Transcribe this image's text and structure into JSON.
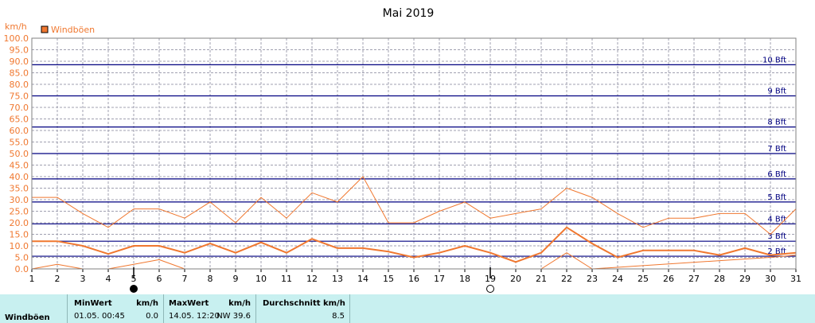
{
  "chart_data": {
    "type": "line",
    "title": "Mai 2019",
    "ylabel": "km/h",
    "ylim": [
      0,
      100
    ],
    "ytick_step": 5,
    "xlim": [
      1,
      31
    ],
    "x_ticks": [
      1,
      2,
      3,
      4,
      5,
      6,
      7,
      8,
      9,
      10,
      11,
      12,
      13,
      14,
      15,
      16,
      17,
      18,
      19,
      20,
      21,
      22,
      23,
      24,
      25,
      26,
      27,
      28,
      29,
      30,
      31
    ],
    "grid": true,
    "legend_position": "top-left",
    "legend": {
      "label": "Windböen",
      "color": "#f07830"
    },
    "series": [
      {
        "name": "Windböen",
        "x": [
          1,
          2,
          3,
          4,
          5,
          6,
          7,
          8,
          9,
          10,
          11,
          12,
          13,
          14,
          15,
          16,
          17,
          18,
          19,
          20,
          21,
          22,
          23,
          24,
          25,
          26,
          27,
          28,
          29,
          30,
          31
        ],
        "values": [
          12,
          12,
          10,
          6.5,
          10,
          10,
          7,
          11,
          7,
          11.5,
          7,
          13,
          9,
          9,
          7.5,
          5,
          7,
          10,
          7,
          3,
          7,
          18,
          11,
          5,
          8,
          8,
          8,
          6,
          9,
          6,
          7
        ]
      },
      {
        "name": "",
        "x": [
          1,
          2,
          3,
          4,
          5,
          6,
          7,
          8,
          9,
          10,
          11,
          12,
          13,
          14,
          15,
          16,
          17,
          18,
          19,
          20,
          21,
          22,
          23,
          24,
          25,
          26,
          27,
          28,
          29,
          30,
          31
        ],
        "values": [
          31,
          31,
          24,
          18,
          26,
          26,
          22,
          29,
          20,
          31,
          22,
          33,
          29,
          40,
          20,
          20,
          25,
          29,
          22,
          24,
          26,
          35,
          31,
          24,
          18,
          22,
          22,
          24,
          24,
          15,
          26
        ]
      },
      {
        "name": "",
        "x": [
          1,
          2,
          3,
          4,
          5,
          6,
          7,
          8,
          21,
          22,
          23,
          30,
          31
        ],
        "values": [
          0,
          2,
          0,
          0,
          2,
          4,
          0,
          null,
          0,
          7,
          0,
          5,
          6
        ]
      }
    ],
    "beaufort": [
      {
        "label": "2 Bft",
        "value": 5.5
      },
      {
        "label": "3 Bft",
        "value": 12
      },
      {
        "label": "4 Bft",
        "value": 19.5
      },
      {
        "label": "5 Bft",
        "value": 29
      },
      {
        "label": "6 Bft",
        "value": 39
      },
      {
        "label": "7 Bft",
        "value": 50
      },
      {
        "label": "8 Bft",
        "value": 61.5
      },
      {
        "label": "9 Bft",
        "value": 75
      },
      {
        "label": "10 Bft",
        "value": 88.5
      }
    ],
    "moon_phases": [
      {
        "day": 5,
        "phase": "new-moon"
      },
      {
        "day": 19,
        "phase": "full-moon"
      }
    ],
    "colors": {
      "series_main": "#f07830",
      "series_other": "#f07830",
      "beaufort": "#000080",
      "grid": "#a0a0b0",
      "axis": "#000000",
      "footer_bg": "#c8f0f0"
    }
  },
  "footer": {
    "row_label": "Windböen",
    "min_header": "MinWert",
    "min_unit": "km/h",
    "min_time": "01.05.  00:45",
    "min_value": "0.0",
    "max_header": "MaxWert",
    "max_unit": "km/h",
    "max_time": "14.05.  12:20",
    "max_value": "NW 39.6",
    "avg_header": "Durchschnitt km/h",
    "avg_value": "8.5"
  }
}
